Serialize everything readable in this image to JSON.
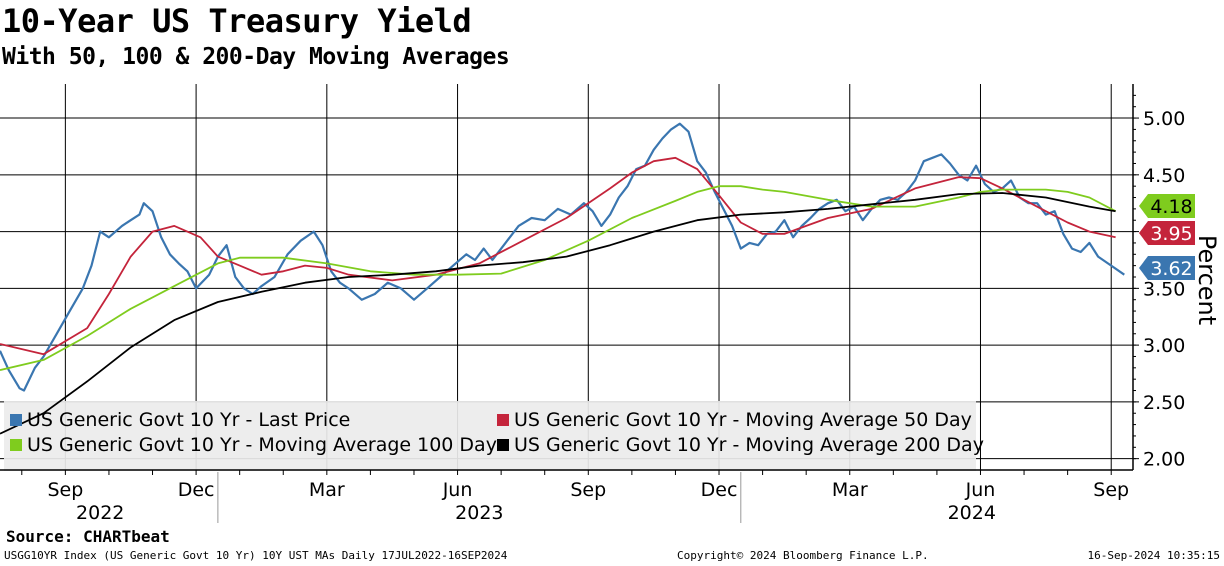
{
  "header": {
    "title": "10-Year US Treasury Yield",
    "subtitle": "With 50, 100 & 200-Day Moving Averages"
  },
  "footer": {
    "source": "Source: CHARTbeat",
    "left": "USGG10YR Index (US Generic Govt 10 Yr) 10Y UST MAs  Daily 17JUL2022-16SEP2024",
    "center": "Copyright© 2024 Bloomberg Finance L.P.",
    "right": "16-Sep-2024 10:35:15"
  },
  "chart_data": {
    "type": "line",
    "title": "10-Year US Treasury Yield",
    "subtitle": "With 50, 100 & 200-Day Moving Averages",
    "ylabel": "Percent",
    "xlabel": "",
    "ylim": [
      1.9,
      5.3
    ],
    "xlim": [
      0,
      26.0
    ],
    "grid": true,
    "legend_position": "bottom-left",
    "y_ticks": [
      "5.00",
      "4.50",
      "4.00",
      "3.50",
      "3.00",
      "2.50",
      "2.00"
    ],
    "x_ticks": [
      {
        "label": "Sep",
        "x": 1.5
      },
      {
        "label": "Dec",
        "x": 4.5
      },
      {
        "label": "Mar",
        "x": 7.5
      },
      {
        "label": "Jun",
        "x": 10.5
      },
      {
        "label": "Sep",
        "x": 13.5
      },
      {
        "label": "Dec",
        "x": 16.5
      },
      {
        "label": "Mar",
        "x": 19.5
      },
      {
        "label": "Jun",
        "x": 22.5
      },
      {
        "label": "Sep",
        "x": 25.5
      }
    ],
    "year_labels": [
      {
        "label": "2022",
        "x": 2.3
      },
      {
        "label": "2023",
        "x": 11.0
      },
      {
        "label": "2024",
        "x": 22.3
      }
    ],
    "year_separators": [
      5.0,
      17.0
    ],
    "value_labels": [
      {
        "series": "US Generic Govt 10 Yr - Moving Average 100 Day",
        "value": "4.18",
        "color": "#7fcc1e",
        "text_color": "#000000"
      },
      {
        "series": "US Generic Govt 10 Yr - Moving Average 50 Day",
        "value": "3.95",
        "color": "#c4243b",
        "text_color": "#ffffff"
      },
      {
        "series": "US Generic Govt 10 Yr - Last Price",
        "value": "3.62",
        "color": "#3a76b0",
        "text_color": "#ffffff"
      }
    ],
    "series": [
      {
        "name": "US Generic Govt 10 Yr - Last Price",
        "color": "#3a76b0",
        "x": [
          0,
          0.2,
          0.45,
          0.55,
          0.8,
          1.0,
          1.3,
          1.6,
          1.9,
          2.1,
          2.3,
          2.5,
          2.8,
          3.0,
          3.2,
          3.3,
          3.5,
          3.7,
          3.9,
          4.1,
          4.3,
          4.5,
          4.8,
          5.0,
          5.2,
          5.4,
          5.6,
          5.8,
          6.0,
          6.3,
          6.6,
          6.9,
          7.2,
          7.4,
          7.6,
          7.8,
          8.0,
          8.3,
          8.6,
          8.9,
          9.2,
          9.5,
          9.8,
          10.1,
          10.4,
          10.7,
          10.9,
          11.1,
          11.3,
          11.6,
          11.9,
          12.2,
          12.5,
          12.8,
          13.1,
          13.4,
          13.6,
          13.8,
          14.0,
          14.2,
          14.4,
          14.6,
          14.8,
          15.0,
          15.2,
          15.4,
          15.6,
          15.8,
          16.0,
          16.2,
          16.4,
          16.6,
          16.8,
          17.0,
          17.2,
          17.4,
          17.6,
          17.8,
          18.0,
          18.2,
          18.4,
          18.6,
          18.8,
          19.0,
          19.2,
          19.4,
          19.6,
          19.8,
          20.0,
          20.2,
          20.4,
          20.6,
          20.8,
          21.0,
          21.2,
          21.4,
          21.6,
          21.8,
          22.0,
          22.2,
          22.4,
          22.6,
          22.8,
          23.0,
          23.2,
          23.4,
          23.6,
          23.8,
          24.0,
          24.2,
          24.4,
          24.6,
          24.8,
          25.0,
          25.2,
          25.5,
          25.8
        ],
        "values": [
          2.95,
          2.78,
          2.62,
          2.6,
          2.8,
          2.9,
          3.1,
          3.3,
          3.5,
          3.7,
          4.0,
          3.95,
          4.05,
          4.1,
          4.15,
          4.25,
          4.18,
          3.95,
          3.8,
          3.72,
          3.65,
          3.5,
          3.62,
          3.78,
          3.88,
          3.6,
          3.5,
          3.45,
          3.52,
          3.6,
          3.8,
          3.92,
          4.0,
          3.88,
          3.65,
          3.55,
          3.5,
          3.4,
          3.45,
          3.55,
          3.5,
          3.4,
          3.5,
          3.6,
          3.7,
          3.8,
          3.75,
          3.85,
          3.75,
          3.9,
          4.05,
          4.12,
          4.1,
          4.2,
          4.15,
          4.25,
          4.18,
          4.05,
          4.15,
          4.3,
          4.4,
          4.55,
          4.58,
          4.72,
          4.82,
          4.9,
          4.95,
          4.88,
          4.62,
          4.52,
          4.35,
          4.2,
          4.05,
          3.85,
          3.9,
          3.88,
          3.98,
          4.0,
          4.1,
          3.95,
          4.05,
          4.12,
          4.2,
          4.25,
          4.28,
          4.18,
          4.22,
          4.1,
          4.2,
          4.28,
          4.3,
          4.28,
          4.35,
          4.45,
          4.62,
          4.65,
          4.68,
          4.6,
          4.5,
          4.45,
          4.58,
          4.42,
          4.35,
          4.38,
          4.45,
          4.3,
          4.25,
          4.25,
          4.15,
          4.18,
          3.98,
          3.85,
          3.82,
          3.9,
          3.78,
          3.7,
          3.62
        ]
      },
      {
        "name": "US Generic Govt 10 Yr - Moving Average 50 Day",
        "color": "#c4243b",
        "x": [
          0,
          1.0,
          2.0,
          2.5,
          3.0,
          3.5,
          4.0,
          4.6,
          5.0,
          5.5,
          6.0,
          6.5,
          7.0,
          7.5,
          8.0,
          9.0,
          10.0,
          11.0,
          12.0,
          13.0,
          14.0,
          14.5,
          15.0,
          15.5,
          16.0,
          16.5,
          17.0,
          17.5,
          18.0,
          18.5,
          19.0,
          20.0,
          21.0,
          22.0,
          22.5,
          23.0,
          23.5,
          24.0,
          24.5,
          25.0,
          25.6
        ],
        "values": [
          3.01,
          2.92,
          3.15,
          3.45,
          3.78,
          4.0,
          4.05,
          3.95,
          3.78,
          3.7,
          3.62,
          3.65,
          3.7,
          3.68,
          3.62,
          3.57,
          3.62,
          3.72,
          3.92,
          4.12,
          4.38,
          4.52,
          4.62,
          4.65,
          4.55,
          4.32,
          4.08,
          3.98,
          3.98,
          4.05,
          4.12,
          4.2,
          4.38,
          4.48,
          4.47,
          4.38,
          4.28,
          4.18,
          4.08,
          4.0,
          3.95
        ]
      },
      {
        "name": "US Generic Govt 10 Yr - Moving Average 100 Day",
        "color": "#7fcc1e",
        "x": [
          0,
          1.0,
          2.0,
          3.0,
          4.0,
          5.0,
          5.5,
          6.5,
          7.5,
          8.5,
          9.5,
          10.5,
          11.5,
          12.5,
          13.5,
          14.5,
          15.5,
          16.0,
          16.5,
          17.0,
          17.5,
          18.0,
          19.0,
          20.0,
          21.0,
          22.0,
          22.5,
          23.0,
          23.5,
          24.0,
          24.5,
          25.0,
          25.6
        ],
        "values": [
          2.78,
          2.87,
          3.08,
          3.32,
          3.52,
          3.72,
          3.77,
          3.77,
          3.72,
          3.65,
          3.62,
          3.62,
          3.63,
          3.75,
          3.92,
          4.12,
          4.27,
          4.35,
          4.4,
          4.4,
          4.37,
          4.35,
          4.28,
          4.22,
          4.22,
          4.3,
          4.35,
          4.37,
          4.37,
          4.37,
          4.35,
          4.3,
          4.18
        ]
      },
      {
        "name": "US Generic Govt 10 Yr - Moving Average 200 Day",
        "color": "#000000",
        "x": [
          0,
          1.0,
          2.0,
          3.0,
          4.0,
          5.0,
          6.0,
          7.0,
          8.0,
          9.0,
          10.0,
          11.0,
          12.0,
          13.0,
          14.0,
          15.0,
          16.0,
          17.0,
          18.0,
          19.0,
          20.0,
          21.0,
          22.0,
          23.0,
          24.0,
          25.0,
          25.6
        ],
        "values": [
          2.22,
          2.4,
          2.68,
          2.98,
          3.22,
          3.38,
          3.47,
          3.55,
          3.6,
          3.62,
          3.65,
          3.7,
          3.73,
          3.78,
          3.88,
          4.0,
          4.1,
          4.15,
          4.17,
          4.2,
          4.24,
          4.28,
          4.33,
          4.34,
          4.3,
          4.22,
          4.18
        ]
      }
    ]
  }
}
